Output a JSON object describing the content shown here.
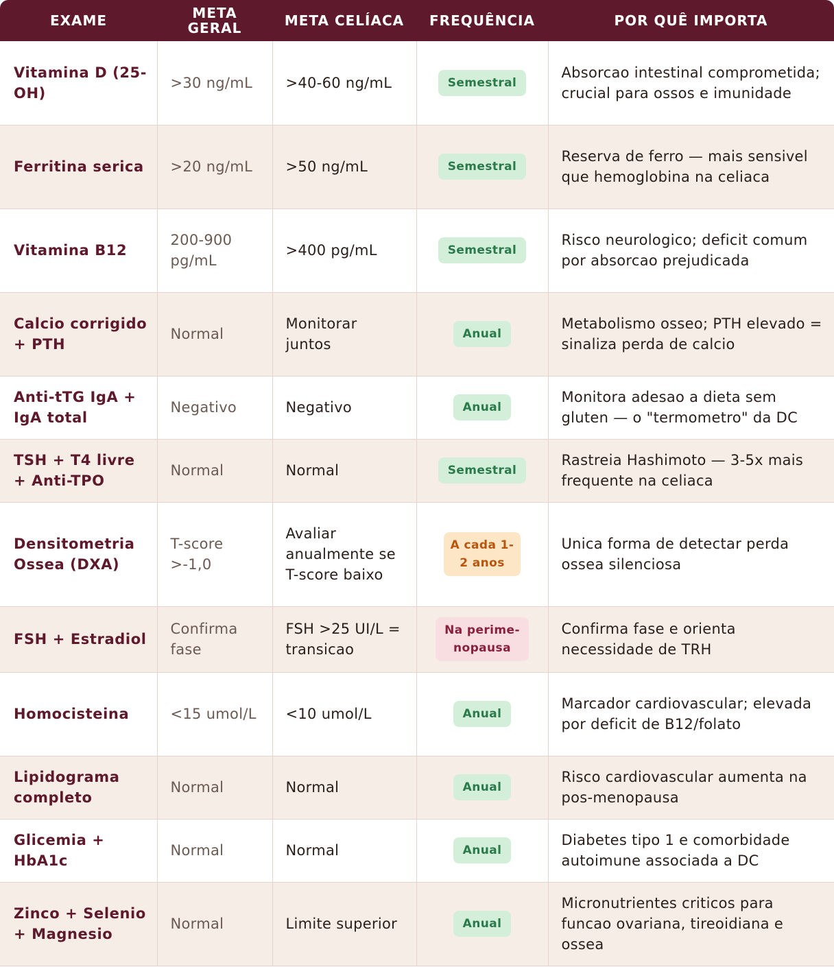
{
  "header": {
    "exame": "EXAME",
    "meta_geral": "META GERAL",
    "meta_celiaca": "META CELÍACA",
    "frequencia": "FREQUÊNCIA",
    "por_que": "POR QUÊ IMPORTA"
  },
  "colors": {
    "header_bg": "#5e1a2c",
    "exam_text": "#5e1a2c",
    "even_row_bg": "#f6ede7",
    "badge_green": "#d3efda",
    "badge_orange": "#fde6c5",
    "badge_pink": "#f8dde1"
  },
  "rows": [
    {
      "exame": "Vitamina D (25-OH)",
      "meta_geral": ">30 ng/mL",
      "meta_celiaca": ">40-60 ng/mL",
      "frequencia": "Semestral",
      "badge": "green",
      "por_que": "Absorcao intestinal comprometida; crucial para ossos e imunidade"
    },
    {
      "exame": "Ferritina serica",
      "meta_geral": ">20 ng/mL",
      "meta_celiaca": ">50 ng/mL",
      "frequencia": "Semestral",
      "badge": "green",
      "por_que": "Reserva de ferro — mais sensivel que hemoglobina na celiaca"
    },
    {
      "exame": "Vitamina B12",
      "meta_geral": "200-900 pg/mL",
      "meta_celiaca": ">400 pg/mL",
      "frequencia": "Semestral",
      "badge": "green",
      "por_que": "Risco neurologico; deficit comum por absorcao prejudicada"
    },
    {
      "exame": "Calcio corrigido + PTH",
      "meta_geral": "Normal",
      "meta_celiaca": "Monitorar juntos",
      "frequencia": "Anual",
      "badge": "green",
      "por_que": "Metabolismo osseo; PTH elevado = sinaliza perda de calcio"
    },
    {
      "exame": "Anti-tTG IgA + IgA total",
      "meta_geral": "Negativo",
      "meta_celiaca": "Negativo",
      "frequencia": "Anual",
      "badge": "green",
      "por_que": "Monitora adesao a dieta sem gluten — o \"termometro\" da DC"
    },
    {
      "exame": "TSH + T4 livre + Anti-TPO",
      "meta_geral": "Normal",
      "meta_celiaca": "Normal",
      "frequencia": "Semestral",
      "badge": "green",
      "por_que": "Rastreia Hashimoto — 3-5x mais frequente na celiaca"
    },
    {
      "exame": "Densitometria Ossea (DXA)",
      "meta_geral": "T-score >-1,0",
      "meta_celiaca": "Avaliar anualmente se T-score baixo",
      "frequencia": "A cada 1-2 anos",
      "badge": "orange",
      "por_que": "Unica forma de detectar perda ossea silenciosa"
    },
    {
      "exame": "FSH + Estradiol",
      "meta_geral": "Confirma fase",
      "meta_celiaca": "FSH >25 UI/L = transicao",
      "frequencia": "Na perime-nopausa",
      "badge": "pink",
      "por_que": "Confirma fase e orienta necessidade de TRH"
    },
    {
      "exame": "Homocisteina",
      "meta_geral": "<15 umol/L",
      "meta_celiaca": "<10 umol/L",
      "frequencia": "Anual",
      "badge": "green",
      "por_que": "Marcador cardiovascular; elevada por deficit de B12/folato"
    },
    {
      "exame": "Lipidograma completo",
      "meta_geral": "Normal",
      "meta_celiaca": "Normal",
      "frequencia": "Anual",
      "badge": "green",
      "por_que": "Risco cardiovascular aumenta na pos-menopausa"
    },
    {
      "exame": "Glicemia + HbA1c",
      "meta_geral": "Normal",
      "meta_celiaca": "Normal",
      "frequencia": "Anual",
      "badge": "green",
      "por_que": "Diabetes tipo 1 e comorbidade autoimune associada a DC"
    },
    {
      "exame": "Zinco + Selenio + Magnesio",
      "meta_geral": "Normal",
      "meta_celiaca": "Limite superior",
      "frequencia": "Anual",
      "badge": "green",
      "por_que": "Micronutrientes criticos para funcao ovariana, tireoidiana e ossea"
    }
  ]
}
